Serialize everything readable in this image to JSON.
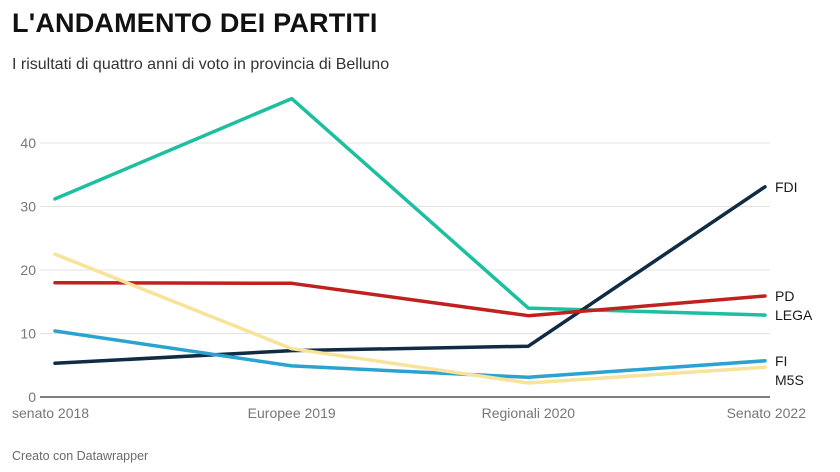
{
  "title": "L'ANDAMENTO DEI PARTITI",
  "subtitle": "I risultati di quattro anni di voto in provincia di Belluno",
  "footer": "Creato con Datawrapper",
  "chart_data": {
    "type": "line",
    "categories": [
      "senato 2018",
      "Europee 2019",
      "Regionali 2020",
      "Senato 2022"
    ],
    "ylim": [
      0,
      45
    ],
    "yticks": [
      0,
      10,
      20,
      30,
      40
    ],
    "grid": true,
    "series": [
      {
        "name": "LEGA",
        "color": "#1cbf9e",
        "values": [
          31.2,
          47.0,
          14.0,
          12.9
        ]
      },
      {
        "name": "FDI",
        "color": "#0f2c44",
        "values": [
          5.3,
          7.3,
          8.0,
          33.1
        ]
      },
      {
        "name": "PD",
        "color": "#c0211f",
        "values": [
          18.0,
          17.9,
          12.8,
          15.9
        ]
      },
      {
        "name": "FI",
        "color": "#2aa3d0",
        "values": [
          10.4,
          4.9,
          3.1,
          5.7
        ]
      },
      {
        "name": "M5S",
        "color": "#f7e39a",
        "values": [
          22.5,
          7.6,
          2.2,
          4.7
        ]
      }
    ]
  }
}
